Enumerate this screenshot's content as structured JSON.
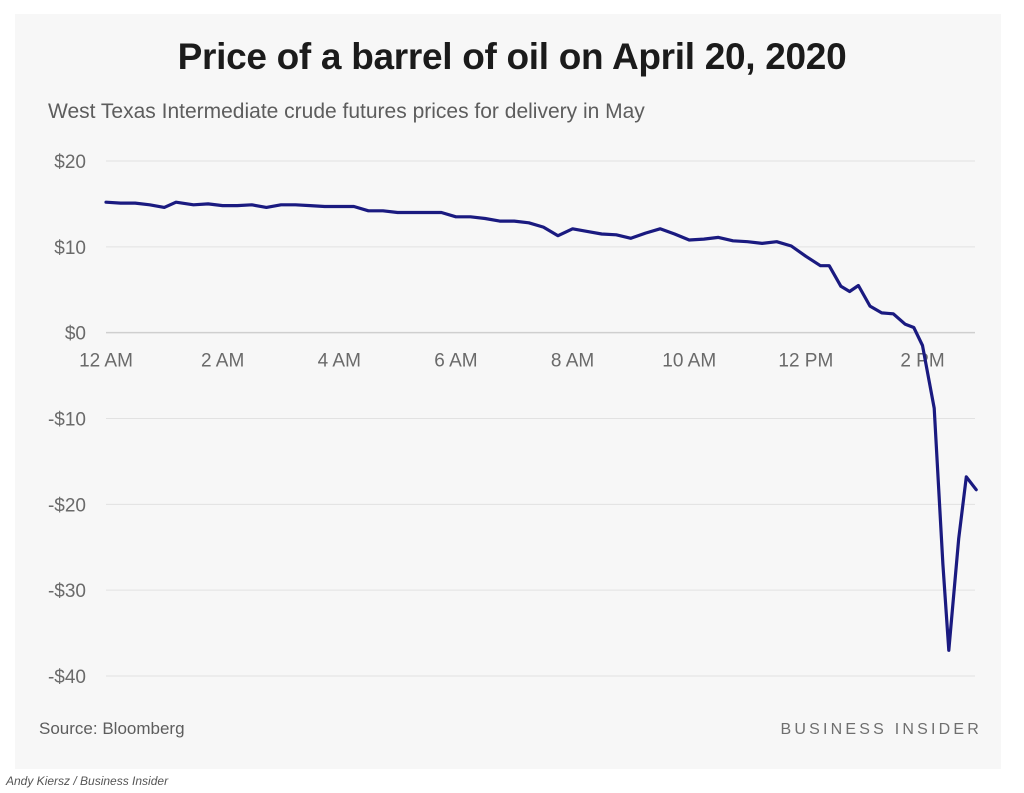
{
  "chart_data": {
    "type": "line",
    "title": "Price of a barrel of oil on April 20, 2020",
    "subtitle": "West Texas Intermediate crude futures prices for delivery in May",
    "xlabel": "",
    "ylabel": "",
    "x_tick_labels": [
      "12 AM",
      "2 AM",
      "4 AM",
      "6 AM",
      "8 AM",
      "10 AM",
      "12 PM",
      "2 PM"
    ],
    "y_tick_labels": [
      "$20",
      "$10",
      "$0",
      "-$10",
      "-$20",
      "-$30",
      "-$40"
    ],
    "y_ticks": [
      20,
      10,
      0,
      -10,
      -20,
      -30,
      -40
    ],
    "x_unit": "hours after midnight",
    "xlim": [
      0,
      14.9
    ],
    "ylim": [
      -40,
      20
    ],
    "grid": true,
    "line_color": "#1a1a80",
    "series": [
      {
        "x": [
          0,
          0.25,
          0.5,
          0.75,
          1.0,
          1.2,
          1.5,
          1.75,
          2.0,
          2.25,
          2.5,
          2.75,
          3.0,
          3.25,
          3.5,
          3.75,
          4.0,
          4.25,
          4.5,
          4.75,
          5.0,
          5.25,
          5.5,
          5.75,
          6.0,
          6.25,
          6.5,
          6.75,
          7.0,
          7.25,
          7.5,
          7.75,
          8.0,
          8.25,
          8.5,
          8.75,
          9.0,
          9.25,
          9.5,
          9.75,
          10.0,
          10.25,
          10.5,
          10.75,
          11.0,
          11.25,
          11.5,
          11.75,
          12.0,
          12.25,
          12.4,
          12.6,
          12.75,
          12.9,
          13.1,
          13.3,
          13.5,
          13.7,
          13.85,
          14.0,
          14.2,
          14.35,
          14.45,
          14.62,
          14.75,
          14.92
        ],
        "y": [
          15.2,
          15.1,
          15.1,
          14.9,
          14.6,
          15.2,
          14.9,
          15.0,
          14.8,
          14.8,
          14.9,
          14.6,
          14.9,
          14.9,
          14.8,
          14.7,
          14.7,
          14.7,
          14.2,
          14.2,
          14.0,
          14.0,
          14.0,
          14.0,
          13.5,
          13.5,
          13.3,
          13.0,
          13.0,
          12.8,
          12.3,
          11.3,
          12.1,
          11.8,
          11.5,
          11.4,
          11.0,
          11.6,
          12.1,
          11.5,
          10.8,
          10.9,
          11.1,
          10.7,
          10.6,
          10.4,
          10.6,
          10.1,
          8.9,
          7.8,
          7.8,
          5.4,
          4.8,
          5.5,
          3.1,
          2.3,
          2.2,
          1.0,
          0.6,
          -1.5,
          -8.8,
          -27.0,
          -37.0,
          -24.0,
          -16.8,
          -18.3
        ]
      }
    ]
  },
  "footer": {
    "source_label": "Source:",
    "source_value": "Bloomberg",
    "brand": "BUSINESS INSIDER",
    "credit": "Andy Kiersz / Business Insider"
  }
}
